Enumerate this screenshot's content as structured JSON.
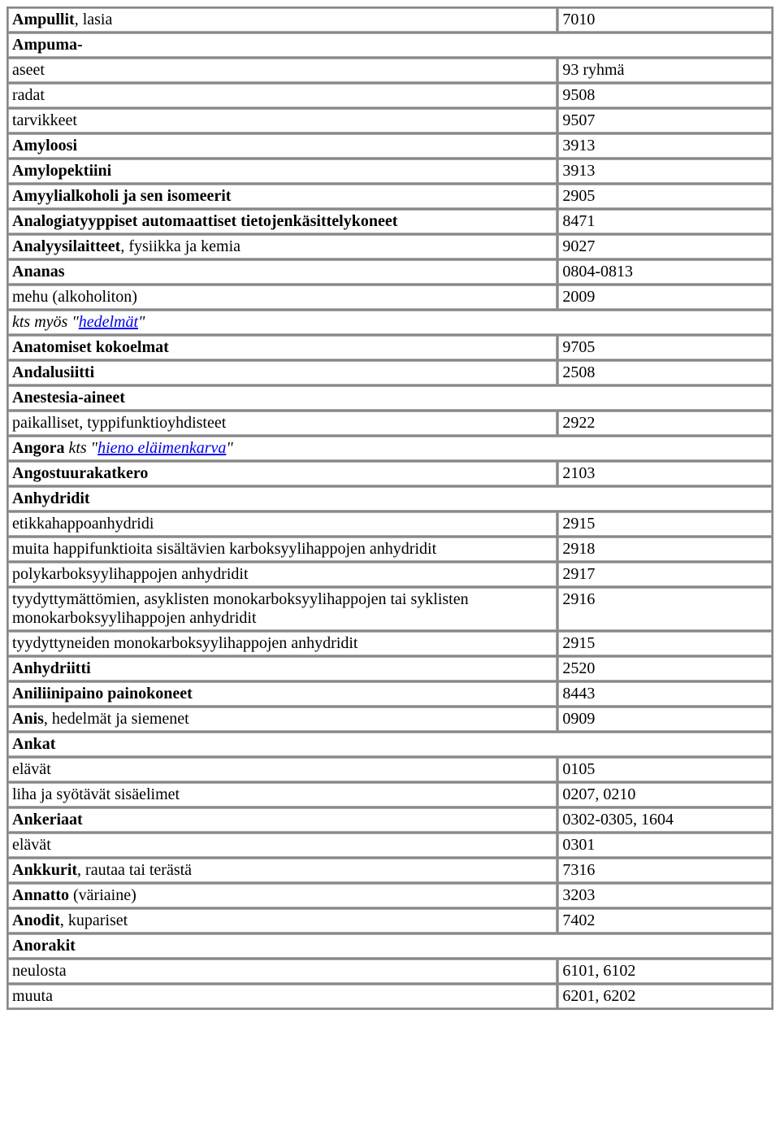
{
  "layout": {
    "column_widths_pct": [
      72,
      28
    ],
    "border_color": "#aaaaaa",
    "spacing_color": "#888888",
    "background_color": "#ffffff",
    "text_color": "#000000",
    "link_color": "#0000ee",
    "font_family": "Times New Roman",
    "font_size_pt": 15
  },
  "rows": [
    {
      "type": "kv",
      "term": [
        {
          "t": "Ampullit",
          "b": true
        },
        {
          "t": ", lasia"
        }
      ],
      "code": "7010"
    },
    {
      "type": "full",
      "term": [
        {
          "t": "Ampuma-",
          "b": true
        }
      ]
    },
    {
      "type": "kv",
      "term": [
        {
          "t": "aseet"
        }
      ],
      "code": "93 ryhmä"
    },
    {
      "type": "kv",
      "term": [
        {
          "t": "radat"
        }
      ],
      "code": "9508"
    },
    {
      "type": "kv",
      "term": [
        {
          "t": "tarvikkeet"
        }
      ],
      "code": "9507"
    },
    {
      "type": "kv",
      "term": [
        {
          "t": "Amyloosi",
          "b": true
        }
      ],
      "code": "3913"
    },
    {
      "type": "kv",
      "term": [
        {
          "t": "Amylopektiini",
          "b": true
        }
      ],
      "code": "3913"
    },
    {
      "type": "kv",
      "term": [
        {
          "t": "Amyylialkoholi ja sen isomeerit",
          "b": true
        }
      ],
      "code": "2905"
    },
    {
      "type": "kv",
      "term": [
        {
          "t": "Analogiatyyppiset automaattiset tietojenkäsittelykoneet",
          "b": true
        }
      ],
      "code": "8471"
    },
    {
      "type": "kv",
      "term": [
        {
          "t": "Analyysilaitteet",
          "b": true
        },
        {
          "t": ", fysiikka ja kemia"
        }
      ],
      "code": "9027"
    },
    {
      "type": "kv",
      "term": [
        {
          "t": "Ananas",
          "b": true
        }
      ],
      "code": "0804-0813"
    },
    {
      "type": "kv",
      "term": [
        {
          "t": "mehu (alkoholiton)"
        }
      ],
      "code": "2009"
    },
    {
      "type": "full",
      "term": [
        {
          "t": "kts myös \"",
          "i": true
        },
        {
          "t": "hedelmät",
          "link": true
        },
        {
          "t": "\"",
          "i": true
        }
      ]
    },
    {
      "type": "kv",
      "term": [
        {
          "t": "Anatomiset kokoelmat",
          "b": true
        }
      ],
      "code": "9705"
    },
    {
      "type": "kv",
      "term": [
        {
          "t": "Andalusiitti",
          "b": true
        }
      ],
      "code": "2508"
    },
    {
      "type": "full",
      "term": [
        {
          "t": "Anestesia-aineet",
          "b": true
        }
      ]
    },
    {
      "type": "kv",
      "term": [
        {
          "t": "paikalliset, typpifunktioyhdisteet"
        }
      ],
      "code": "2922"
    },
    {
      "type": "full",
      "term": [
        {
          "t": "Angora",
          "b": true
        },
        {
          "t": "   "
        },
        {
          "t": "kts \"",
          "i": true
        },
        {
          "t": "hieno eläimenkarva",
          "link": true
        },
        {
          "t": "\"",
          "i": true
        }
      ]
    },
    {
      "type": "kv",
      "term": [
        {
          "t": "Angostuurakatkero",
          "b": true
        }
      ],
      "code": "2103"
    },
    {
      "type": "full",
      "term": [
        {
          "t": "Anhydridit",
          "b": true
        }
      ]
    },
    {
      "type": "kv",
      "term": [
        {
          "t": "etikkahappoanhydridi"
        }
      ],
      "code": "2915"
    },
    {
      "type": "kv",
      "term": [
        {
          "t": "muita happifunktioita sisältävien karboksyylihappojen anhydridit"
        }
      ],
      "code": "2918"
    },
    {
      "type": "kv",
      "term": [
        {
          "t": "polykarboksyylihappojen anhydridit"
        }
      ],
      "code": "2917"
    },
    {
      "type": "kv",
      "term": [
        {
          "t": "tyydyttymättömien, asyklisten monokarboksyylihappojen tai syklisten monokarboksyylihappojen anhydridit"
        }
      ],
      "code": "2916"
    },
    {
      "type": "kv",
      "term": [
        {
          "t": "tyydyttyneiden monokarboksyylihappojen anhydridit"
        }
      ],
      "code": "2915"
    },
    {
      "type": "kv",
      "term": [
        {
          "t": "Anhydriitti",
          "b": true
        }
      ],
      "code": "2520"
    },
    {
      "type": "kv",
      "term": [
        {
          "t": "Aniliinipaino painokoneet",
          "b": true
        }
      ],
      "code": "8443"
    },
    {
      "type": "kv",
      "term": [
        {
          "t": "Anis",
          "b": true
        },
        {
          "t": ", hedelmät ja siemenet"
        }
      ],
      "code": "0909"
    },
    {
      "type": "full",
      "term": [
        {
          "t": "Ankat",
          "b": true
        }
      ]
    },
    {
      "type": "kv",
      "term": [
        {
          "t": "elävät"
        }
      ],
      "code": "0105"
    },
    {
      "type": "kv",
      "term": [
        {
          "t": "liha ja syötävät sisäelimet"
        }
      ],
      "code": "0207, 0210"
    },
    {
      "type": "kv",
      "term": [
        {
          "t": "Ankeriaat",
          "b": true
        }
      ],
      "code": "0302-0305, 1604"
    },
    {
      "type": "kv",
      "term": [
        {
          "t": "elävät"
        }
      ],
      "code": "0301"
    },
    {
      "type": "kv",
      "term": [
        {
          "t": "Ankkurit",
          "b": true
        },
        {
          "t": ", rautaa tai terästä"
        }
      ],
      "code": "7316"
    },
    {
      "type": "kv",
      "term": [
        {
          "t": "Annatto",
          "b": true
        },
        {
          "t": " (väriaine)"
        }
      ],
      "code": "3203"
    },
    {
      "type": "kv",
      "term": [
        {
          "t": "Anodit",
          "b": true
        },
        {
          "t": ", kupariset"
        }
      ],
      "code": "7402"
    },
    {
      "type": "full",
      "term": [
        {
          "t": "Anorakit",
          "b": true
        }
      ]
    },
    {
      "type": "kv",
      "term": [
        {
          "t": "neulosta"
        }
      ],
      "code": "6101, 6102"
    },
    {
      "type": "kv",
      "term": [
        {
          "t": "muuta"
        }
      ],
      "code": "6201, 6202"
    }
  ]
}
